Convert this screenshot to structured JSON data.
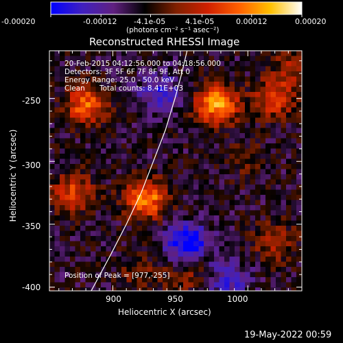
{
  "chart_data": {
    "type": "heatmap",
    "title": "Reconstructed RHESSI Image",
    "xlabel": "Heliocentric X (arcsec)",
    "ylabel": "Heliocentric Y (arcsec)",
    "xlim": [
      853,
      1040
    ],
    "ylim": [
      -403,
      -212
    ],
    "x_ticks": [
      900,
      950,
      1000
    ],
    "y_ticks": [
      -250,
      -300,
      -350,
      -400
    ],
    "colorbar": {
      "ticks": [
        "-0.00020",
        "-0.00012",
        "-4.1e-05",
        "4.1e-05",
        "0.00012",
        "0.00020"
      ],
      "tick_values": [
        -0.0002,
        -0.00012,
        -4.1e-05,
        4.1e-05,
        0.00012,
        0.0002
      ],
      "range": [
        -0.0002,
        0.0002
      ],
      "unit_label": "(photons cm⁻² s⁻¹ asec⁻²)",
      "colors": [
        "#0000ff",
        "#4020c0",
        "#602080",
        "#000000",
        "#802000",
        "#d02000",
        "#ff6000",
        "#ffc000",
        "#ffffff"
      ]
    },
    "annotations": {
      "time": "20-Feb-2015 04:12:56.000 to 04:18:56.000",
      "detectors": "Detectors: 3F 5F 6F 7F 8F 9F, Att 0",
      "energy": "Energy Range: 25.0 - 50.0 keV",
      "algorithm": "Clean",
      "counts": "Total counts: 8.41E+03",
      "peak": "Position of Peak = [977,-255]"
    },
    "peak": [
      977,
      -255
    ],
    "limb_line": [
      [
        884,
        -403
      ],
      [
        898,
        -375
      ],
      [
        910,
        -350
      ],
      [
        921,
        -325
      ],
      [
        930,
        -300
      ],
      [
        939,
        -275
      ],
      [
        946,
        -250
      ],
      [
        951,
        -230
      ],
      [
        955,
        -212
      ]
    ],
    "sources": [
      {
        "x": 977,
        "y": -255,
        "value": 0.0002
      },
      {
        "x": 925,
        "y": -330,
        "value": 0.00018
      },
      {
        "x": 880,
        "y": -255,
        "value": 0.00015
      },
      {
        "x": 870,
        "y": -325,
        "value": 0.00012
      },
      {
        "x": 1020,
        "y": -250,
        "value": 0.00012
      },
      {
        "x": 1020,
        "y": -365,
        "value": 8e-05
      },
      {
        "x": 1033,
        "y": -225,
        "value": 7e-05
      },
      {
        "x": 955,
        "y": -390,
        "value": 6e-05
      },
      {
        "x": 920,
        "y": -390,
        "value": 5e-05
      },
      {
        "x": 1000,
        "y": -300,
        "value": 4e-05
      },
      {
        "x": 955,
        "y": -365,
        "value": -0.00015
      },
      {
        "x": 935,
        "y": -245,
        "value": -0.0001
      },
      {
        "x": 985,
        "y": -395,
        "value": -9e-05
      }
    ]
  },
  "footer": {
    "timestamp": "19-May-2022 00:59"
  }
}
